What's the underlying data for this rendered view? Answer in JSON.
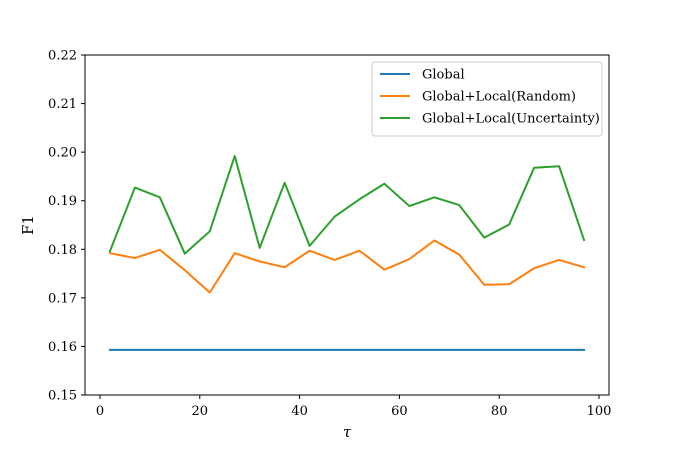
{
  "chart_data": {
    "type": "line",
    "xlabel": "τ",
    "ylabel": "F1",
    "xlim": [
      -3,
      102
    ],
    "ylim": [
      0.15,
      0.22
    ],
    "xticks": [
      0,
      20,
      40,
      60,
      80,
      100
    ],
    "yticks": [
      0.15,
      0.16,
      0.17,
      0.18,
      0.19,
      0.2,
      0.21,
      0.22
    ],
    "xtick_labels": [
      "0",
      "20",
      "40",
      "60",
      "80",
      "100"
    ],
    "ytick_labels": [
      "0.15",
      "0.16",
      "0.17",
      "0.18",
      "0.19",
      "0.20",
      "0.21",
      "0.22"
    ],
    "grid": false,
    "legend_position": "top-right",
    "x": [
      2,
      7,
      12,
      17,
      22,
      27,
      32,
      37,
      42,
      47,
      52,
      57,
      62,
      67,
      72,
      77,
      82,
      87,
      92,
      97
    ],
    "series": [
      {
        "name": "Global",
        "color": "#1f77b4",
        "values": [
          0.1593,
          0.1593,
          0.1593,
          0.1593,
          0.1593,
          0.1593,
          0.1593,
          0.1593,
          0.1593,
          0.1593,
          0.1593,
          0.1593,
          0.1593,
          0.1593,
          0.1593,
          0.1593,
          0.1593,
          0.1593,
          0.1593,
          0.1593
        ]
      },
      {
        "name": "Global+Local(Random)",
        "color": "#ff7f0e",
        "values": [
          0.1792,
          0.1782,
          0.1799,
          0.1757,
          0.1711,
          0.1792,
          0.1775,
          0.1763,
          0.1797,
          0.1778,
          0.1797,
          0.1758,
          0.178,
          0.1818,
          0.1789,
          0.1727,
          0.1728,
          0.1761,
          0.1778,
          0.1763
        ]
      },
      {
        "name": "Global+Local(Uncertainty)",
        "color": "#2ca02c",
        "values": [
          0.1796,
          0.1927,
          0.1907,
          0.1791,
          0.1837,
          0.1992,
          0.1803,
          0.1937,
          0.1807,
          0.1867,
          0.1903,
          0.1935,
          0.1889,
          0.1907,
          0.1891,
          0.1824,
          0.1851,
          0.1968,
          0.1971,
          0.1819
        ]
      }
    ]
  }
}
